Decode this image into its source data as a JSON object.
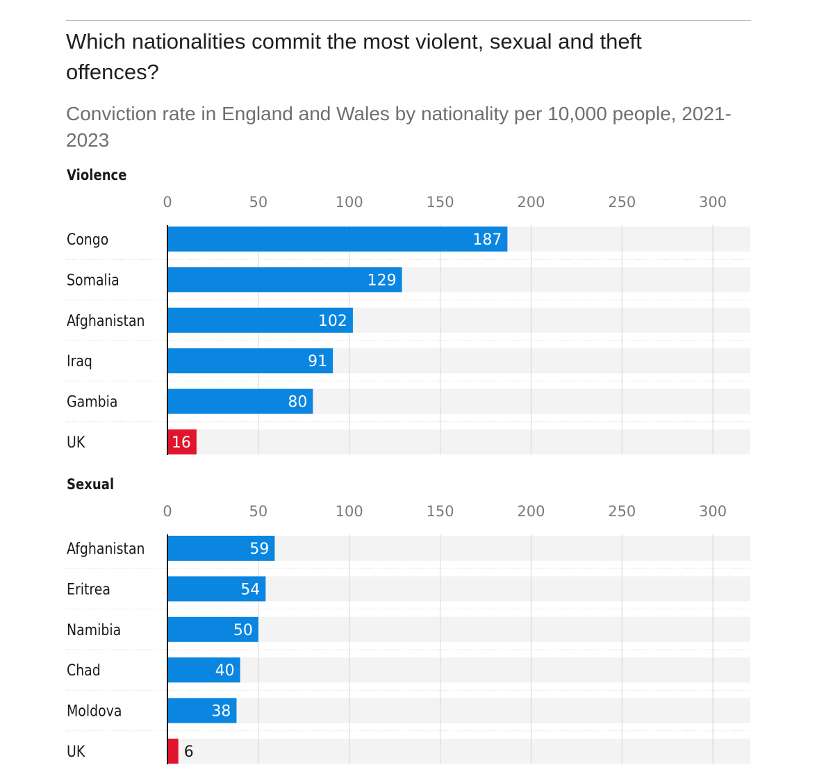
{
  "header": {
    "title": "Which nationalities commit the most violent, sexual and theft offences?",
    "subtitle": "Conviction rate in England and Wales by nationality per 10,000 people, 2021-2023"
  },
  "colors": {
    "bar_default": "#0a86e0",
    "bar_highlight": "#e0142c",
    "track": "#f3f3f3",
    "gridline": "#d4d4d4",
    "axis": "#1a1a1a"
  },
  "chart_data": [
    {
      "type": "bar",
      "orientation": "horizontal",
      "title": "Violence",
      "xlim": [
        0,
        300
      ],
      "ticks": [
        0,
        50,
        100,
        150,
        200,
        250,
        300
      ],
      "tick_labels": [
        "0",
        "50",
        "100",
        "150",
        "200",
        "250",
        "300"
      ],
      "grid": true,
      "categories": [
        "Congo",
        "Somalia",
        "Afghanistan",
        "Iraq",
        "Gambia",
        "UK"
      ],
      "values": [
        187,
        129,
        102,
        91,
        80,
        16
      ],
      "value_labels": [
        "187",
        "129",
        "102",
        "91",
        "80",
        "16"
      ],
      "highlight": [
        "UK"
      ]
    },
    {
      "type": "bar",
      "orientation": "horizontal",
      "title": "Sexual",
      "xlim": [
        0,
        300
      ],
      "ticks": [
        0,
        50,
        100,
        150,
        200,
        250,
        300
      ],
      "tick_labels": [
        "0",
        "50",
        "100",
        "150",
        "200",
        "250",
        "300"
      ],
      "grid": true,
      "categories": [
        "Afghanistan",
        "Eritrea",
        "Namibia",
        "Chad",
        "Moldova",
        "UK"
      ],
      "values": [
        59,
        54,
        50,
        40,
        38,
        6
      ],
      "value_labels": [
        "59",
        "54",
        "50",
        "40",
        "38",
        "6"
      ],
      "highlight": [
        "UK"
      ]
    }
  ]
}
